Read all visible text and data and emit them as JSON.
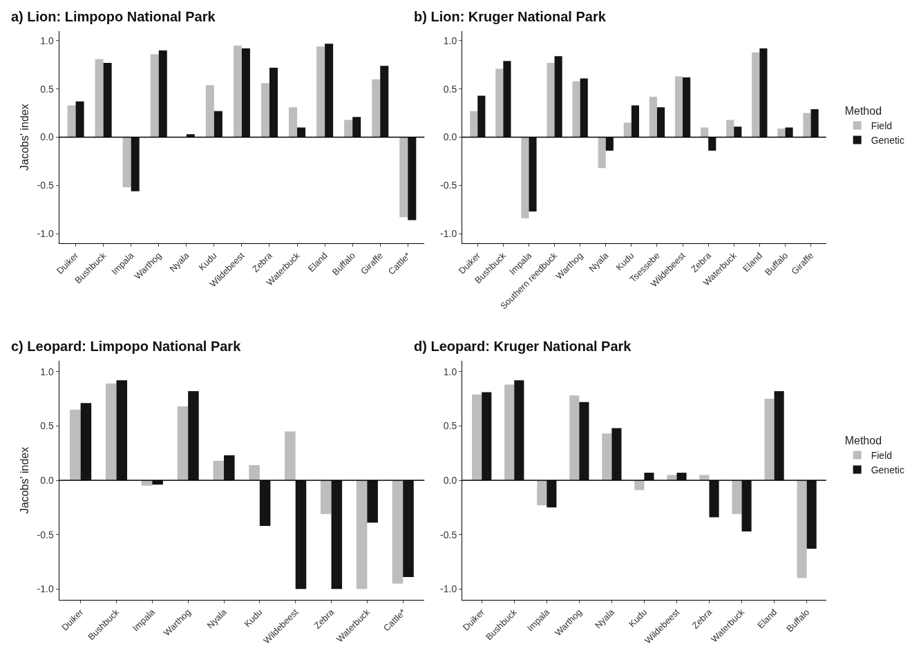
{
  "chart_data": [
    {
      "type": "bar",
      "title": "a) Lion: Limpopo National Park",
      "ylabel": "Jacobs' index",
      "categories": [
        "Duiker",
        "Bushbuck",
        "Impala",
        "Warthog",
        "Nyala",
        "Kudu",
        "Wildebeest",
        "Zebra",
        "Waterbuck",
        "Eland",
        "Buffalo",
        "Giraffe",
        "Cattle*"
      ],
      "series": [
        {
          "color": "#bdbdbd",
          "values": [
            0.33,
            0.81,
            -0.52,
            0.86,
            null,
            0.54,
            0.95,
            0.56,
            0.31,
            0.94,
            0.18,
            0.6,
            -0.83
          ]
        },
        {
          "color": "#141414",
          "values": [
            0.37,
            0.77,
            -0.56,
            0.9,
            0.03,
            0.27,
            0.92,
            0.72,
            0.1,
            0.97,
            0.21,
            0.74,
            -0.86
          ]
        }
      ],
      "ylim": [
        -1.1,
        1.1
      ],
      "yticks": [
        {
          "value": -1,
          "label": "-1.0"
        },
        {
          "value": -0.5,
          "label": "-0.5"
        },
        {
          "value": 0,
          "label": "0.0"
        },
        {
          "value": 0.5,
          "label": "0.5"
        },
        {
          "value": 1,
          "label": "1.0"
        }
      ],
      "ref_lines": [
        {
          "axis": "y",
          "value": 0,
          "color": "#000000"
        }
      ]
    },
    {
      "type": "bar",
      "title": "b) Lion: Kruger National Park",
      "legend_title": "Method",
      "legend": "right",
      "categories": [
        "Duiker",
        "Bushbuck",
        "Impala",
        "Southern reedbuck",
        "Warthog",
        "Nyala",
        "Kudu",
        "Tsessebe",
        "Wildebeest",
        "Zebra",
        "Waterbuck",
        "Eland",
        "Buffalo",
        "Giraffe"
      ],
      "series": [
        {
          "name": "Field",
          "color": "#bdbdbd",
          "values": [
            0.27,
            0.71,
            -0.84,
            0.77,
            0.58,
            -0.32,
            0.15,
            0.42,
            0.63,
            0.1,
            0.18,
            0.88,
            0.09,
            0.25
          ]
        },
        {
          "name": "Genetic",
          "color": "#141414",
          "values": [
            0.43,
            0.79,
            -0.77,
            0.84,
            0.61,
            -0.14,
            0.33,
            0.31,
            0.62,
            -0.14,
            0.11,
            0.92,
            0.1,
            0.29
          ]
        }
      ],
      "ylim": [
        -1.1,
        1.1
      ],
      "yticks": [
        {
          "value": -1,
          "label": "-1.0"
        },
        {
          "value": -0.5,
          "label": "-0.5"
        },
        {
          "value": 0,
          "label": "0.0"
        },
        {
          "value": 0.5,
          "label": "0.5"
        },
        {
          "value": 1,
          "label": "1.0"
        }
      ],
      "ref_lines": [
        {
          "axis": "y",
          "value": 0,
          "color": "#000000"
        }
      ]
    },
    {
      "type": "bar",
      "title": "c) Leopard: Limpopo National Park",
      "ylabel": "Jacobs' index",
      "categories": [
        "Duiker",
        "Bushbuck",
        "Impala",
        "Warthog",
        "Nyala",
        "Kudu",
        "Wildebeest",
        "Zebra",
        "Waterbuck",
        "Cattle*"
      ],
      "series": [
        {
          "color": "#bdbdbd",
          "values": [
            0.65,
            0.89,
            -0.05,
            0.68,
            0.18,
            0.14,
            0.45,
            -0.31,
            -1.0,
            -0.95
          ]
        },
        {
          "color": "#141414",
          "values": [
            0.71,
            0.92,
            -0.04,
            0.82,
            0.23,
            -0.42,
            -1.0,
            -1.0,
            -0.39,
            -0.89
          ]
        }
      ],
      "ylim": [
        -1.1,
        1.1
      ],
      "yticks": [
        {
          "value": -1,
          "label": "-1.0"
        },
        {
          "value": -0.5,
          "label": "-0.5"
        },
        {
          "value": 0,
          "label": "0.0"
        },
        {
          "value": 0.5,
          "label": "0.5"
        },
        {
          "value": 1,
          "label": "1.0"
        }
      ],
      "ref_lines": [
        {
          "axis": "y",
          "value": 0,
          "color": "#000000"
        }
      ]
    },
    {
      "type": "bar",
      "title": "d) Leopard: Kruger National Park",
      "legend_title": "Method",
      "legend": "right",
      "categories": [
        "Duiker",
        "Bushbuck",
        "Impala",
        "Warthog",
        "Nyala",
        "Kudu",
        "Wildebeest",
        "Zebra",
        "Waterbuck",
        "Eland",
        "Buffalo"
      ],
      "series": [
        {
          "name": "Field",
          "color": "#bdbdbd",
          "values": [
            0.79,
            0.88,
            -0.23,
            0.78,
            0.43,
            -0.09,
            0.05,
            0.05,
            -0.31,
            0.75,
            -0.9
          ]
        },
        {
          "name": "Genetic",
          "color": "#141414",
          "values": [
            0.81,
            0.92,
            -0.25,
            0.72,
            0.48,
            0.07,
            0.07,
            -0.34,
            -0.47,
            0.82,
            -0.63
          ]
        }
      ],
      "ylim": [
        -1.1,
        1.1
      ],
      "yticks": [
        {
          "value": -1,
          "label": "-1.0"
        },
        {
          "value": -0.5,
          "label": "-0.5"
        },
        {
          "value": 0,
          "label": "0.0"
        },
        {
          "value": 0.5,
          "label": "0.5"
        },
        {
          "value": 1,
          "label": "1.0"
        }
      ],
      "ref_lines": [
        {
          "axis": "y",
          "value": 0,
          "color": "#000000"
        }
      ]
    }
  ]
}
